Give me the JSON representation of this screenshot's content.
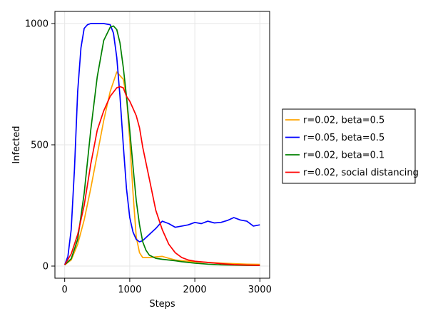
{
  "chart_data": {
    "type": "line",
    "title": "",
    "xlabel": "Steps",
    "ylabel": "Infected",
    "xlim": [
      -150,
      3150
    ],
    "ylim": [
      -50,
      1050
    ],
    "xticks": [
      0,
      1000,
      2000,
      3000
    ],
    "xtick_labels": [
      "0",
      "1000",
      "2000",
      "3000"
    ],
    "yticks": [
      0,
      500,
      1000
    ],
    "ytick_labels": [
      "0",
      "500",
      "1000"
    ],
    "grid": true,
    "legend_position": "right",
    "series": [
      {
        "name": "r=0.02, beta=0.5",
        "color": "#ffa500",
        "x": [
          0,
          100,
          200,
          300,
          400,
          500,
          600,
          700,
          800,
          900,
          950,
          1000,
          1050,
          1100,
          1150,
          1200,
          1300,
          1400,
          1500,
          1600,
          1700,
          1800,
          1900,
          2000,
          2200,
          2400,
          2600,
          2800,
          3000
        ],
        "y": [
          5,
          25,
          90,
          190,
          320,
          460,
          600,
          720,
          800,
          770,
          700,
          520,
          300,
          120,
          55,
          35,
          35,
          38,
          40,
          32,
          25,
          22,
          20,
          18,
          15,
          12,
          10,
          8,
          7
        ]
      },
      {
        "name": "r=0.05, beta=0.5",
        "color": "#0000ff",
        "x": [
          0,
          50,
          100,
          150,
          200,
          250,
          300,
          350,
          400,
          500,
          600,
          700,
          750,
          800,
          850,
          900,
          950,
          1000,
          1050,
          1100,
          1150,
          1200,
          1300,
          1400,
          1500,
          1600,
          1700,
          1800,
          1900,
          2000,
          2100,
          2200,
          2300,
          2400,
          2500,
          2600,
          2700,
          2800,
          2900,
          3000
        ],
        "y": [
          5,
          40,
          150,
          400,
          720,
          900,
          980,
          995,
          1000,
          1000,
          1000,
          995,
          960,
          860,
          700,
          500,
          320,
          200,
          140,
          110,
          100,
          105,
          130,
          155,
          185,
          175,
          160,
          165,
          170,
          180,
          175,
          185,
          178,
          180,
          188,
          200,
          190,
          185,
          165,
          170
        ]
      },
      {
        "name": "r=0.02, beta=0.1",
        "color": "#008000",
        "x": [
          0,
          100,
          200,
          300,
          400,
          500,
          600,
          700,
          750,
          800,
          850,
          900,
          950,
          1000,
          1050,
          1100,
          1150,
          1200,
          1250,
          1300,
          1400,
          1500,
          1600,
          1700,
          1800,
          2000,
          2200,
          2400,
          2600,
          2800,
          3000
        ],
        "y": [
          5,
          30,
          110,
          300,
          560,
          780,
          930,
          985,
          990,
          975,
          920,
          820,
          700,
          560,
          410,
          270,
          170,
          100,
          65,
          45,
          32,
          28,
          25,
          22,
          18,
          12,
          8,
          5,
          4,
          3,
          3
        ]
      },
      {
        "name": "r=0.02, social distancing",
        "color": "#ff0000",
        "x": [
          0,
          100,
          200,
          300,
          400,
          500,
          600,
          700,
          800,
          850,
          900,
          950,
          1000,
          1050,
          1100,
          1150,
          1200,
          1300,
          1400,
          1500,
          1600,
          1700,
          1800,
          1900,
          2000,
          2200,
          2400,
          2600,
          2800,
          3000
        ],
        "y": [
          5,
          50,
          130,
          250,
          420,
          560,
          640,
          700,
          735,
          740,
          735,
          700,
          680,
          650,
          620,
          570,
          490,
          360,
          230,
          150,
          90,
          55,
          35,
          25,
          20,
          15,
          10,
          6,
          4,
          3
        ]
      }
    ]
  }
}
